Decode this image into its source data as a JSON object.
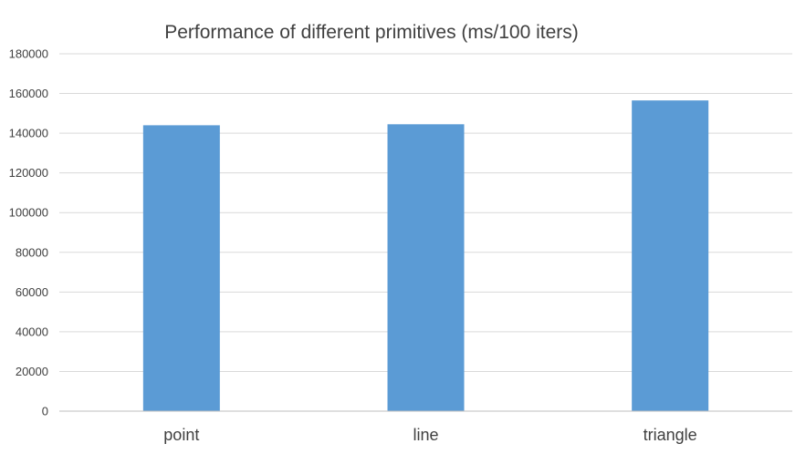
{
  "chart_data": {
    "type": "bar",
    "title": "Performance of different primitives (ms/100 iters)",
    "categories": [
      "point",
      "line",
      "triangle"
    ],
    "values": [
      144000,
      144500,
      156500
    ],
    "ylim": [
      0,
      180000
    ],
    "yticks": [
      0,
      20000,
      40000,
      60000,
      80000,
      100000,
      120000,
      140000,
      160000,
      180000
    ],
    "grid": true,
    "bar_color": "#5b9bd5",
    "legend": "none"
  }
}
